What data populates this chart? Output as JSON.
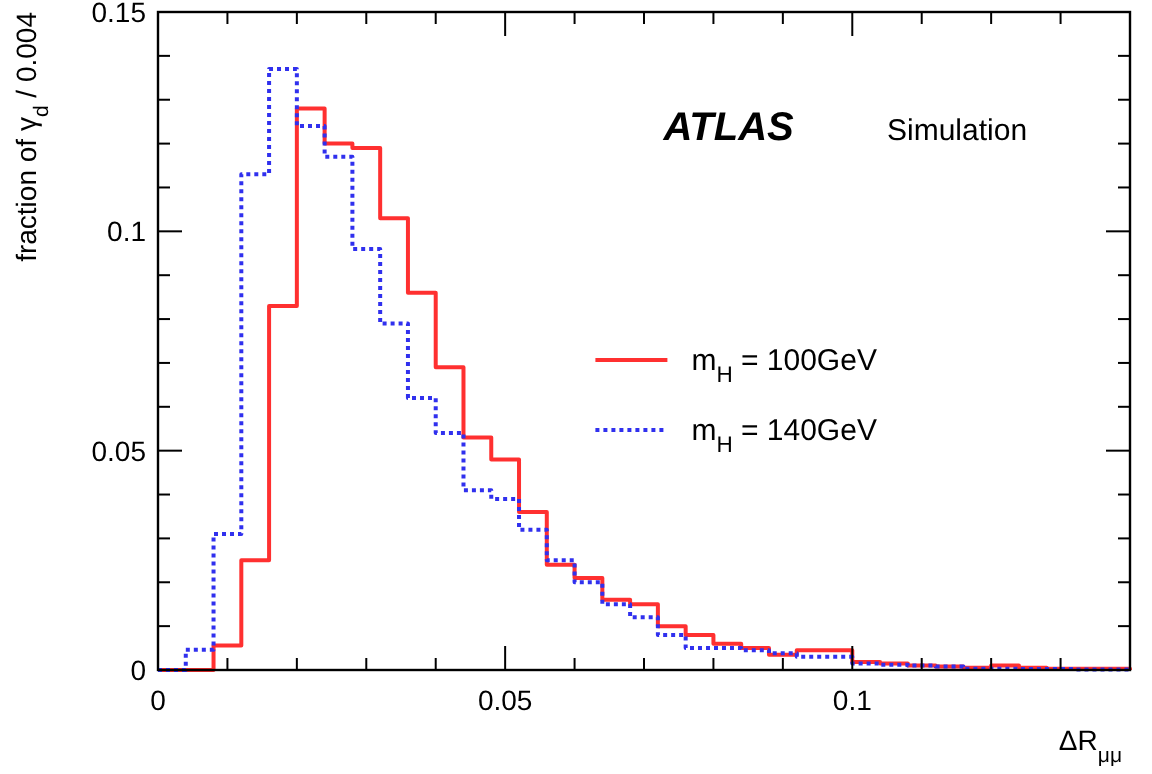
{
  "chart_data": {
    "type": "histogram",
    "bins": [
      0,
      0.004,
      0.008,
      0.012,
      0.016,
      0.02,
      0.024,
      0.028,
      0.032,
      0.036,
      0.04,
      0.044,
      0.048,
      0.052,
      0.056,
      0.06,
      0.064,
      0.068,
      0.072,
      0.076,
      0.08,
      0.084,
      0.088,
      0.092,
      0.096,
      0.1,
      0.104,
      0.108,
      0.112,
      0.116,
      0.12,
      0.124,
      0.128,
      0.132,
      0.136,
      0.14
    ],
    "series": [
      {
        "name": "m$_{H}$ = 100GeV",
        "color": "#ff3030",
        "line_style": "solid",
        "values": [
          0,
          0,
          0.0056,
          0.025,
          0.083,
          0.128,
          0.12,
          0.119,
          0.103,
          0.086,
          0.069,
          0.053,
          0.048,
          0.036,
          0.024,
          0.021,
          0.016,
          0.015,
          0.01,
          0.008,
          0.006,
          0.005,
          0.0035,
          0.0045,
          0.0045,
          0.0018,
          0.0015,
          0.001,
          0.0008,
          0.0005,
          0.001,
          0.0005,
          0.0003,
          0.0003,
          0.0003
        ]
      },
      {
        "name": "m$_{H}$ = 140GeV",
        "color": "#3030ee",
        "line_style": "dotted",
        "values": [
          0,
          0.0046,
          0.031,
          0.113,
          0.137,
          0.124,
          0.117,
          0.096,
          0.079,
          0.062,
          0.054,
          0.041,
          0.039,
          0.032,
          0.025,
          0.02,
          0.015,
          0.012,
          0.008,
          0.005,
          0.005,
          0.0045,
          0.0038,
          0.003,
          0.003,
          0.0015,
          0.0012,
          0.001,
          0.0008,
          0.0003,
          0.0003,
          0.0002,
          0.0002,
          0.0001,
          0.0001
        ]
      }
    ],
    "xlabel": "ΔR$_{μμ}$",
    "ylabel": "fraction of γ$_{d}$ / 0.004",
    "xlim": [
      0,
      0.14
    ],
    "ylim": [
      0,
      0.15
    ],
    "xticks": [
      0,
      {
        "value": 0.01,
        "label": null
      },
      {
        "value": 0.02,
        "label": null
      },
      {
        "value": 0.03,
        "label": null
      },
      {
        "value": 0.04,
        "label": null
      },
      0.05,
      {
        "value": 0.06,
        "label": null
      },
      {
        "value": 0.07,
        "label": null
      },
      {
        "value": 0.08,
        "label": null
      },
      {
        "value": 0.09,
        "label": null
      },
      0.1,
      {
        "value": 0.11,
        "label": null
      },
      {
        "value": 0.12,
        "label": null
      },
      {
        "value": 0.13,
        "label": null
      }
    ],
    "yticks": [
      0,
      {
        "value": 0.01,
        "label": null
      },
      {
        "value": 0.02,
        "label": null
      },
      {
        "value": 0.03,
        "label": null
      },
      {
        "value": 0.04,
        "label": null
      },
      0.05,
      {
        "value": 0.06,
        "label": null
      },
      {
        "value": 0.07,
        "label": null
      },
      {
        "value": 0.08,
        "label": null
      },
      {
        "value": 0.09,
        "label": null
      },
      0.1,
      {
        "value": 0.11,
        "label": null
      },
      {
        "value": 0.12,
        "label": null
      },
      {
        "value": 0.13,
        "label": null
      },
      {
        "value": 0.14,
        "label": null
      },
      0.15
    ],
    "annotations": [
      "ATLAS",
      "Simulation"
    ],
    "legend": "right",
    "grid": false
  }
}
